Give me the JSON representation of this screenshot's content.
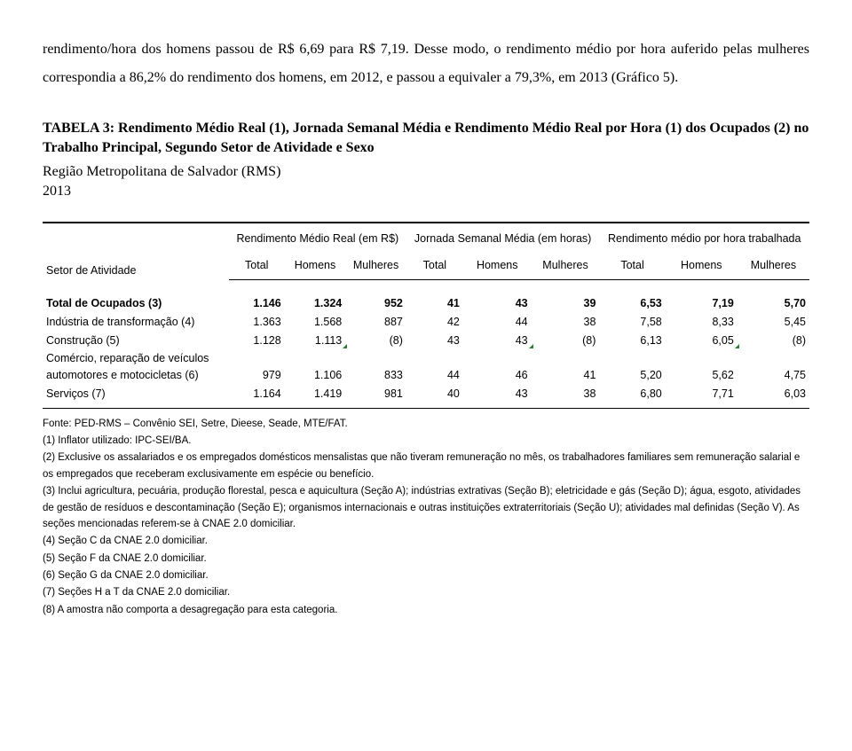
{
  "intro": "rendimento/hora dos homens passou de R$ 6,69 para R$ 7,19. Desse modo, o rendimento médio por hora auferido pelas mulheres correspondia a 86,2% do rendimento dos homens, em 2012, e passou a equivaler a 79,3%, em 2013 (Gráfico 5).",
  "title": "TABELA 3: Rendimento Médio Real (1), Jornada Semanal Média e Rendimento Médio Real por Hora (1) dos Ocupados (2) no Trabalho Principal, Segundo Setor de Atividade e Sexo",
  "subtitle_line1": "Região Metropolitana de Salvador (RMS)",
  "subtitle_line2": "2013",
  "headers": {
    "row_label": "Setor de Atividade",
    "group1": "Rendimento Médio Real (em R$)",
    "group2": "Jornada Semanal Média (em horas)",
    "group3": "Rendimento médio por hora trabalhada",
    "sub_total": "Total",
    "sub_h": "Homens",
    "sub_m": "Mulheres"
  },
  "rows": [
    {
      "label": "Total de Ocupados (3)",
      "bold": true,
      "c": [
        "1.146",
        "1.324",
        "952",
        "41",
        "43",
        "39",
        "6,53",
        "7,19",
        "5,70"
      ],
      "tick": [
        false,
        false,
        false,
        false,
        false,
        false,
        false,
        false,
        false
      ]
    },
    {
      "label": "Indústria de transformação (4)",
      "bold": false,
      "c": [
        "1.363",
        "1.568",
        "887",
        "42",
        "44",
        "38",
        "7,58",
        "8,33",
        "5,45"
      ],
      "tick": [
        false,
        false,
        false,
        false,
        false,
        false,
        false,
        false,
        false
      ]
    },
    {
      "label": "Construção (5)",
      "bold": false,
      "c": [
        "1.128",
        "1.113",
        "(8)",
        "43",
        "43",
        "(8)",
        "6,13",
        "6,05",
        "(8)"
      ],
      "tick": [
        false,
        true,
        false,
        false,
        true,
        false,
        false,
        true,
        false
      ]
    },
    {
      "label": "Comércio, reparação de veículos automotores e motocicletas (6)",
      "bold": false,
      "c": [
        "979",
        "1.106",
        "833",
        "44",
        "46",
        "41",
        "5,20",
        "5,62",
        "4,75"
      ],
      "tick": [
        false,
        false,
        false,
        false,
        false,
        false,
        false,
        false,
        false
      ]
    },
    {
      "label": "Serviços (7)",
      "bold": false,
      "c": [
        "1.164",
        "1.419",
        "981",
        "40",
        "43",
        "38",
        "6,80",
        "7,71",
        "6,03"
      ],
      "tick": [
        false,
        false,
        false,
        false,
        false,
        false,
        false,
        false,
        false
      ]
    }
  ],
  "notes": [
    "Fonte: PED-RMS – Convênio SEI, Setre, Dieese, Seade, MTE/FAT.",
    "(1) Inflator utilizado: IPC-SEI/BA.",
    "(2) Exclusive os assalariados e os empregados domésticos mensalistas que não tiveram remuneração no mês, os trabalhadores familiares sem remuneração salarial e os empregados que receberam exclusivamente em espécie ou benefício.",
    "(3) Inclui agricultura, pecuária, produção florestal, pesca e aquicultura (Seção A); indústrias extrativas (Seção B); eletricidade e gás (Seção D); água, esgoto, atividades de gestão de resíduos e descontaminação (Seção E); organismos internacionais e outras instituições extraterritoriais (Seção U); atividades mal definidas (Seção V).  As seções mencionadas referem-se à CNAE 2.0 domiciliar.",
    "(4) Seção C da CNAE 2.0 domiciliar.",
    "(5) Seção F da CNAE 2.0 domiciliar.",
    "(6) Seção G da CNAE 2.0 domiciliar.",
    "(7) Seções H a T da CNAE 2.0 domiciliar.",
    "(8) A amostra não comporta a desagregação para esta categoria."
  ]
}
